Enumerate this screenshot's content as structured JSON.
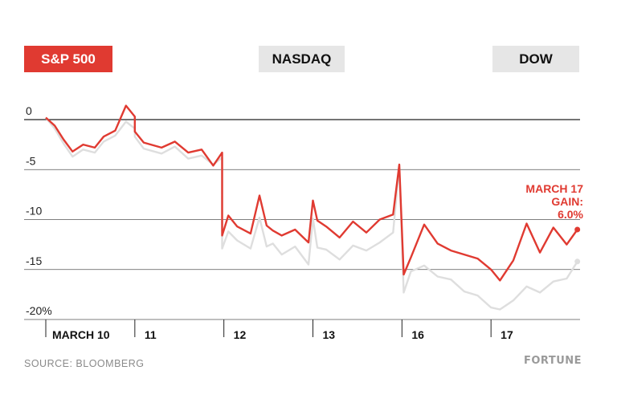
{
  "tabs": [
    {
      "label": "S&P 500",
      "active": true
    },
    {
      "label": "NASDAQ",
      "active": false
    },
    {
      "label": "DOW",
      "active": false
    }
  ],
  "colors": {
    "accent": "#e03a31",
    "secondary_series": "#dedede",
    "axis": "#222222",
    "grid": "#555555"
  },
  "annotation": {
    "line1": "MARCH 17",
    "line2": "GAIN:",
    "line3": "6.0%"
  },
  "footer": {
    "source": "SOURCE: BLOOMBERG",
    "brand": "FORTUNE"
  },
  "chart_data": {
    "type": "line",
    "title": "",
    "xlabel": "",
    "ylabel": "",
    "ylim": [
      -20,
      0
    ],
    "y_ticks": [
      0,
      -5,
      -10,
      -15,
      -20
    ],
    "y_tick_labels": [
      "0",
      "-5",
      "-10",
      "-15",
      "-20%"
    ],
    "x_range": [
      0,
      6
    ],
    "x_tick_labels": [
      "MARCH 10",
      "11",
      "12",
      "13",
      "16",
      "17"
    ],
    "x_tick_positions": [
      0,
      1,
      2,
      3,
      4,
      5
    ],
    "series": [
      {
        "color": "#dedede",
        "x": [
          0,
          0.1,
          0.2,
          0.3,
          0.42,
          0.55,
          0.65,
          0.78,
          0.9,
          1.0,
          1.0,
          1.1,
          1.3,
          1.45,
          1.6,
          1.75,
          1.88,
          1.98,
          1.98,
          2.05,
          2.15,
          2.3,
          2.4,
          2.48,
          2.55,
          2.65,
          2.8,
          2.95,
          3.0,
          3.05,
          3.15,
          3.3,
          3.45,
          3.6,
          3.75,
          3.9,
          3.97,
          4.02,
          4.1,
          4.25,
          4.4,
          4.55,
          4.7,
          4.85,
          5.0,
          5.1,
          5.25,
          5.4,
          5.55,
          5.7,
          5.85,
          5.97
        ],
        "values": [
          0.2,
          -0.9,
          -2.4,
          -3.7,
          -3.0,
          -3.3,
          -2.2,
          -1.6,
          -0.2,
          -0.9,
          -1.7,
          -2.9,
          -3.4,
          -2.7,
          -3.9,
          -3.6,
          -4.5,
          -3.8,
          -12.9,
          -11.2,
          -12.1,
          -12.9,
          -9.8,
          -12.7,
          -12.4,
          -13.5,
          -12.7,
          -14.5,
          -9.9,
          -12.8,
          -13.0,
          -14.0,
          -12.6,
          -13.1,
          -12.3,
          -11.3,
          -4.6,
          -17.3,
          -15.2,
          -14.6,
          -15.7,
          -16.0,
          -17.2,
          -17.6,
          -18.8,
          -19.0,
          -18.1,
          -16.7,
          -17.3,
          -16.2,
          -15.9,
          -14.2
        ]
      },
      {
        "color": "#e03a31",
        "x": [
          0,
          0.1,
          0.2,
          0.3,
          0.42,
          0.55,
          0.65,
          0.78,
          0.9,
          1.0,
          1.0,
          1.1,
          1.3,
          1.45,
          1.6,
          1.75,
          1.88,
          1.98,
          1.98,
          2.05,
          2.15,
          2.3,
          2.4,
          2.48,
          2.55,
          2.65,
          2.8,
          2.95,
          3.0,
          3.05,
          3.15,
          3.3,
          3.45,
          3.6,
          3.75,
          3.9,
          3.97,
          4.02,
          4.1,
          4.25,
          4.4,
          4.55,
          4.7,
          4.85,
          5.0,
          5.1,
          5.25,
          5.4,
          5.55,
          5.7,
          5.85,
          5.97
        ],
        "values": [
          0.2,
          -0.6,
          -2.0,
          -3.2,
          -2.5,
          -2.8,
          -1.7,
          -1.1,
          1.4,
          0.3,
          -1.2,
          -2.3,
          -2.8,
          -2.2,
          -3.3,
          -3.0,
          -4.6,
          -3.3,
          -11.6,
          -9.6,
          -10.7,
          -11.4,
          -7.6,
          -10.6,
          -11.1,
          -11.6,
          -11.0,
          -12.3,
          -8.1,
          -10.1,
          -10.7,
          -11.8,
          -10.2,
          -11.3,
          -10.0,
          -9.5,
          -4.5,
          -15.5,
          -13.8,
          -10.5,
          -12.4,
          -13.1,
          -13.5,
          -13.9,
          -15.0,
          -16.1,
          -14.1,
          -10.4,
          -13.3,
          -10.8,
          -12.5,
          -11.0
        ]
      }
    ],
    "grid": true
  }
}
